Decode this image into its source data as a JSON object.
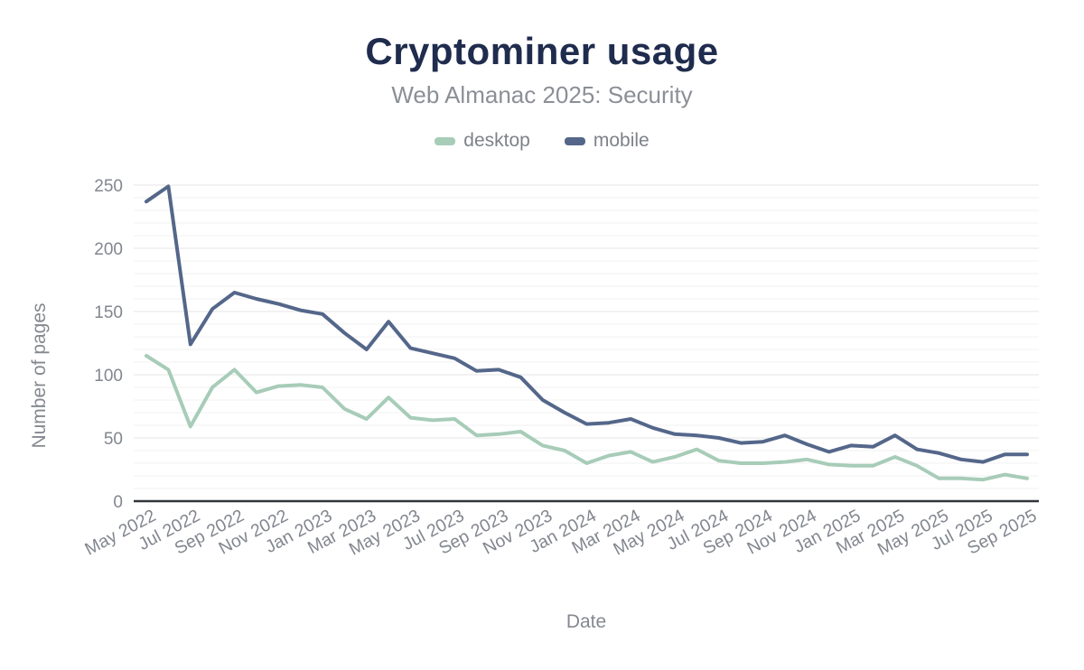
{
  "header": {
    "title": "Cryptominer usage",
    "subtitle": "Web Almanac 2025: Security"
  },
  "legend": {
    "items": [
      {
        "label": "desktop",
        "color": "#a7ccb8"
      },
      {
        "label": "mobile",
        "color": "#54678a"
      }
    ]
  },
  "colors": {
    "title": "#1f2c4d",
    "subtitle": "#8b8f96",
    "tick_label": "#82868e",
    "axis_line": "#31353a",
    "gridline_minor": "#f0f0f0",
    "gridline_major": "#e6e6e6",
    "background": "#ffffff"
  },
  "chart_data": {
    "type": "line",
    "title": "Cryptominer usage",
    "subtitle": "Web Almanac 2025: Security",
    "xlabel": "Date",
    "ylabel": "Number of pages",
    "ylim": [
      0,
      250
    ],
    "yticks": [
      0,
      50,
      100,
      150,
      200,
      250
    ],
    "minor_grid_step": 10,
    "grid": "horizontal",
    "legend_position": "top",
    "x_tick_every": 2,
    "x": [
      "May 2022",
      "Jun 2022",
      "Jul 2022",
      "Aug 2022",
      "Sep 2022",
      "Oct 2022",
      "Nov 2022",
      "Dec 2022",
      "Jan 2023",
      "Feb 2023",
      "Mar 2023",
      "Apr 2023",
      "May 2023",
      "Jun 2023",
      "Jul 2023",
      "Aug 2023",
      "Sep 2023",
      "Oct 2023",
      "Nov 2023",
      "Dec 2023",
      "Jan 2024",
      "Feb 2024",
      "Mar 2024",
      "Apr 2024",
      "May 2024",
      "Jun 2024",
      "Jul 2024",
      "Aug 2024",
      "Sep 2024",
      "Oct 2024",
      "Nov 2024",
      "Dec 2024",
      "Jan 2025",
      "Feb 2025",
      "Mar 2025",
      "Apr 2025",
      "May 2025",
      "Jun 2025",
      "Jul 2025",
      "Aug 2025",
      "Sep 2025"
    ],
    "series": [
      {
        "name": "desktop",
        "color": "#a7ccb8",
        "values": [
          115,
          104,
          59,
          90,
          104,
          86,
          91,
          92,
          90,
          73,
          65,
          82,
          66,
          64,
          65,
          52,
          53,
          55,
          44,
          40,
          30,
          36,
          39,
          31,
          35,
          41,
          32,
          30,
          30,
          31,
          33,
          29,
          28,
          28,
          35,
          28,
          18,
          18,
          17,
          21,
          18
        ]
      },
      {
        "name": "mobile",
        "color": "#54678a",
        "values": [
          237,
          249,
          124,
          152,
          165,
          160,
          156,
          151,
          148,
          133,
          120,
          142,
          121,
          117,
          113,
          103,
          104,
          98,
          80,
          70,
          61,
          62,
          65,
          58,
          53,
          52,
          50,
          46,
          47,
          52,
          45,
          39,
          44,
          43,
          52,
          41,
          38,
          33,
          31,
          37,
          37
        ]
      }
    ]
  }
}
